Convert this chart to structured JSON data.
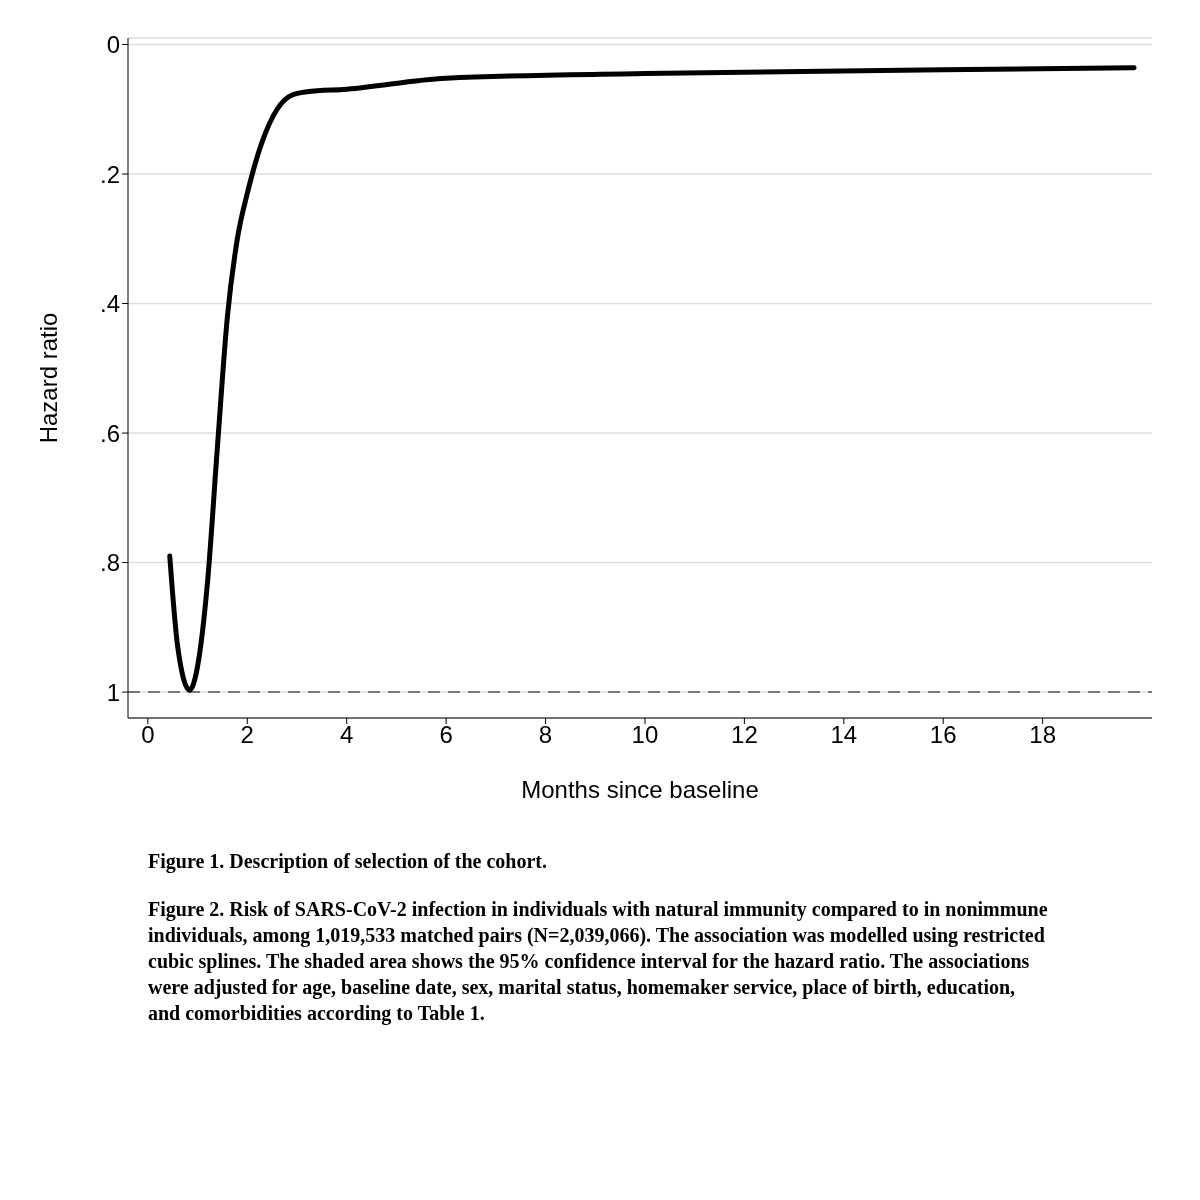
{
  "chart_data": {
    "type": "line",
    "xlabel": "Months since baseline",
    "ylabel": "Hazard ratio",
    "x": [
      0.44,
      0.6,
      0.84,
      1.0,
      1.2,
      1.4,
      1.6,
      1.8,
      2.0,
      2.3,
      2.6,
      2.9,
      3.2,
      4.0,
      6.0,
      10.0,
      16.0,
      19.84
    ],
    "series": [
      {
        "color": "#000000",
        "values": [
          0.79,
          0.93,
          0.997,
          0.96,
          0.83,
          0.62,
          0.42,
          0.3,
          0.23,
          0.15,
          0.1,
          0.078,
          0.073,
          0.069,
          0.052,
          0.045,
          0.039,
          0.036
        ]
      }
    ],
    "xlim": [
      -0.4,
      20.2
    ],
    "xticks": [
      0,
      2,
      4,
      6,
      8,
      10,
      12,
      14,
      16,
      18
    ],
    "ylim": [
      1.04,
      -0.01
    ],
    "yticks": [
      0,
      {
        "value": 0.2,
        "label": ".2"
      },
      {
        "value": 0.4,
        "label": ".4"
      },
      {
        "value": 0.6,
        "label": ".6"
      },
      {
        "value": 0.8,
        "label": ".8"
      },
      1
    ],
    "grid": "y",
    "marker": "none",
    "line_style": "solid",
    "ref_lines": [
      {
        "axis": "y",
        "value": 1,
        "color": "#555555",
        "line_style": "dashed"
      }
    ],
    "annotations": [
      "Figure 1. Description of selection of the cohort.",
      "Figure 2. Risk of SARS-CoV-2 infection in individuals with natural immunity compared to in nonimmune individuals, among 1,019,533 matched pairs (N=2,039,066). The association was modelled using restricted cubic splines. The shaded area shows the 95% confidence interval for the hazard ratio. The associations were adjusted for age, baseline date, sex, marital status, homemaker service, place of birth, education, and comorbidities according to Table 1."
    ]
  }
}
